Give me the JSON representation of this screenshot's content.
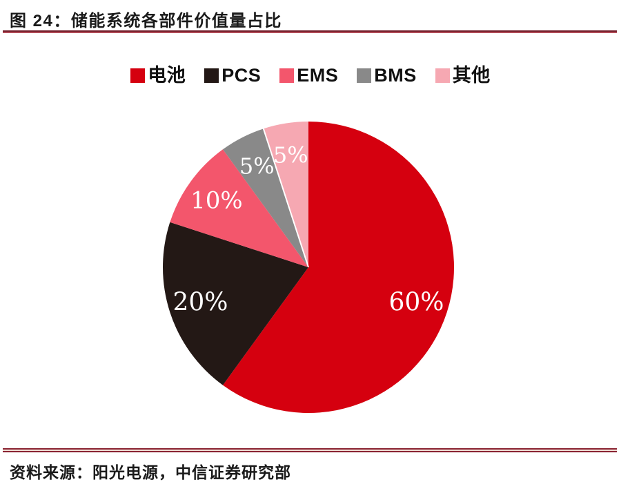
{
  "figure": {
    "title": "图 24：储能系统各部件价值量占比",
    "source": "资料来源：阳光电源，中信证券研究部"
  },
  "colors": {
    "accent_rule": "#8a2432",
    "title_text": "#1a1a1a",
    "slice_label_text": "#ffffff"
  },
  "chart_data": {
    "type": "pie",
    "title": "储能系统各部件价值量占比",
    "categories": [
      "电池",
      "PCS",
      "EMS",
      "BMS",
      "其他"
    ],
    "keys": [
      "battery",
      "pcs",
      "ems",
      "bms",
      "other"
    ],
    "values": [
      60,
      20,
      10,
      5,
      5
    ],
    "labels": [
      "60%",
      "20%",
      "10%",
      "5%",
      "5%"
    ],
    "colors": [
      "#d5000f",
      "#231815",
      "#f3566c",
      "#898989",
      "#f6a8b2"
    ],
    "start_angle_deg": 0,
    "direction": "clockwise",
    "legend_position": "top",
    "label_color": "#ffffff"
  }
}
